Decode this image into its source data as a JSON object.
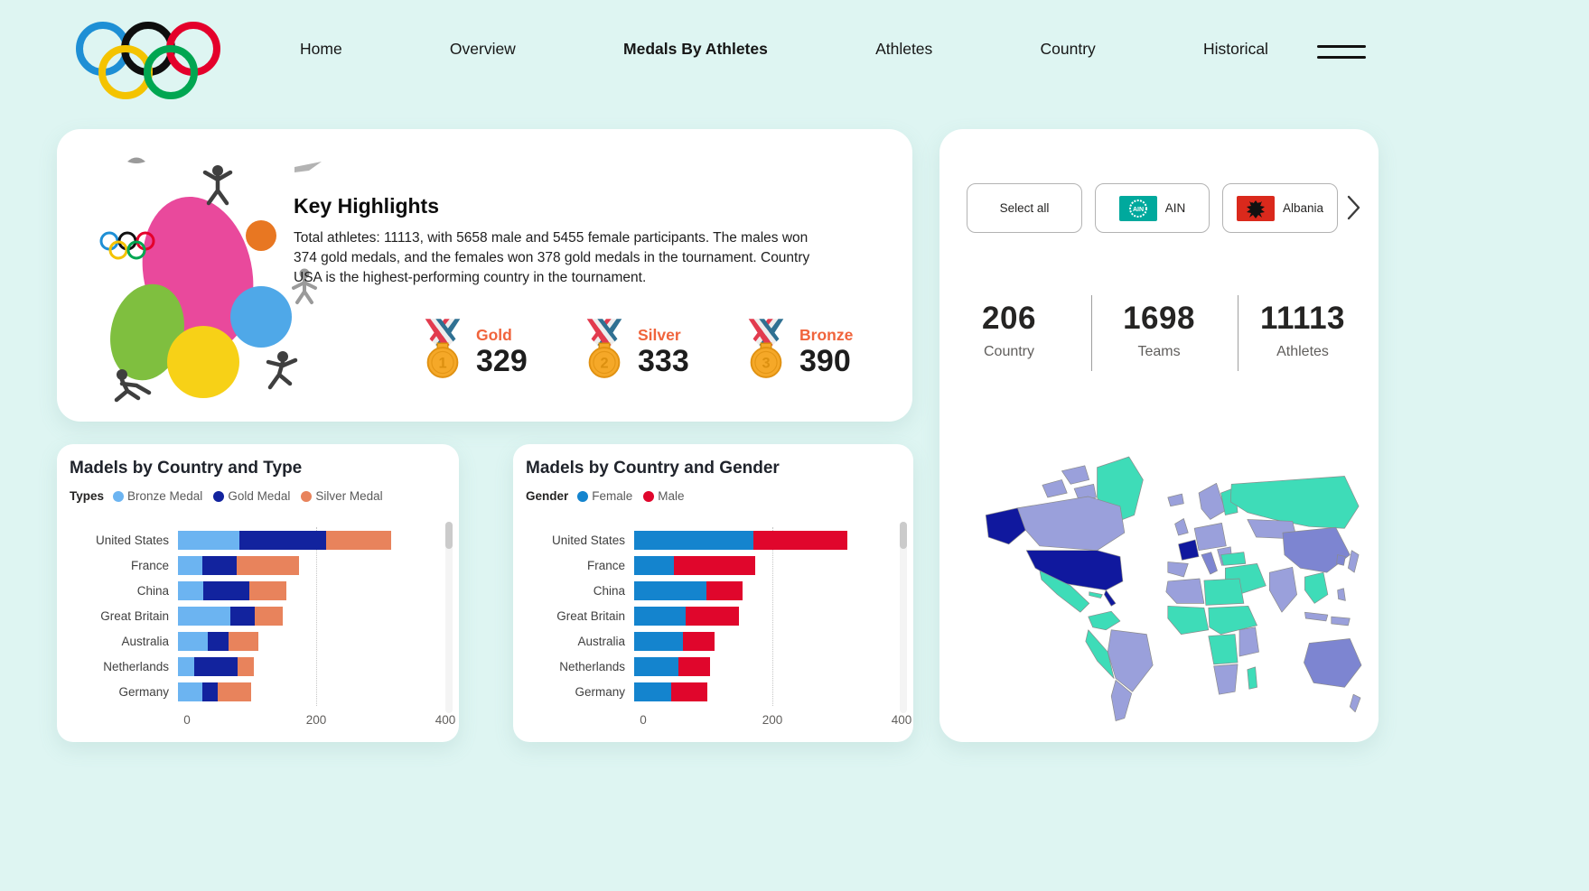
{
  "nav": {
    "items": [
      {
        "label": "Home"
      },
      {
        "label": "Overview"
      },
      {
        "label": "Medals By Athletes"
      },
      {
        "label": "Athletes"
      },
      {
        "label": "Country"
      },
      {
        "label": "Historical"
      }
    ],
    "active_index": 2
  },
  "icons": {
    "logo": "olympic-rings-icon",
    "menu": "hamburger-icon",
    "next": "chevron-right-icon",
    "ain": "ain-flag-icon",
    "albania": "albania-flag-icon"
  },
  "highlights": {
    "title": "Key Highlights",
    "description": "Total athletes: 11113, with 5658 male and 5455 female participants. The males won 374 gold medals, and the females won 378 gold medals in the tournament. Country USA is the highest-performing country in the tournament.",
    "medals": [
      {
        "label": "Gold",
        "value": "329",
        "rank": "1"
      },
      {
        "label": "Silver",
        "value": "333",
        "rank": "2"
      },
      {
        "label": "Bronze",
        "value": "390",
        "rank": "3"
      }
    ]
  },
  "filters": {
    "select_all": "Select all",
    "items": [
      {
        "label": "AIN"
      },
      {
        "label": "Albania"
      }
    ]
  },
  "stats": [
    {
      "value": "206",
      "label": "Country"
    },
    {
      "value": "1698",
      "label": "Teams"
    },
    {
      "value": "11113",
      "label": "Athletes"
    }
  ],
  "chart_data": [
    {
      "type": "bar",
      "orientation": "horizontal",
      "stacked": true,
      "title": "Madels by Country and Type",
      "legend_title": "Types",
      "legend_position": "top",
      "categories": [
        "United States",
        "France",
        "China",
        "Great Britain",
        "Australia",
        "Netherlands",
        "Germany"
      ],
      "series": [
        {
          "name": "Bronze Medal",
          "color": "#6CB4F1",
          "values": [
            95,
            38,
            39,
            81,
            46,
            25,
            38
          ]
        },
        {
          "name": "Gold Medal",
          "color": "#12239E",
          "values": [
            134,
            53,
            71,
            38,
            32,
            67,
            24
          ]
        },
        {
          "name": "Silver Medal",
          "color": "#E8835C",
          "values": [
            101,
            96,
            58,
            43,
            46,
            26,
            51
          ]
        }
      ],
      "xlim": [
        0,
        400
      ],
      "xticks": [
        0,
        200,
        400
      ],
      "grid": "dotted-vertical"
    },
    {
      "type": "bar",
      "orientation": "horizontal",
      "stacked": true,
      "title": "Madels by Country and Gender",
      "legend_title": "Gender",
      "legend_position": "top",
      "categories": [
        "United States",
        "France",
        "China",
        "Great Britain",
        "Australia",
        "Netherlands",
        "Germany"
      ],
      "series": [
        {
          "name": "Female",
          "color": "#1484CE",
          "values": [
            185,
            62,
            112,
            80,
            76,
            69,
            57
          ]
        },
        {
          "name": "Male",
          "color": "#E0062C",
          "values": [
            145,
            125,
            56,
            82,
            48,
            49,
            56
          ]
        }
      ],
      "xlim": [
        0,
        400
      ],
      "xticks": [
        0,
        200,
        400
      ],
      "grid": "dotted-vertical"
    }
  ],
  "palette": {
    "page_bg": "#DEF5F2",
    "card_bg": "#FFFFFF",
    "accent_orange": "#F0643C",
    "text_dark": "#252423",
    "text_gray": "#605E5C",
    "map_teal": "#3EDCB8",
    "map_light_purple": "#9AA0DB",
    "map_medium_purple": "#7D85D1",
    "map_navy": "#10189E"
  }
}
